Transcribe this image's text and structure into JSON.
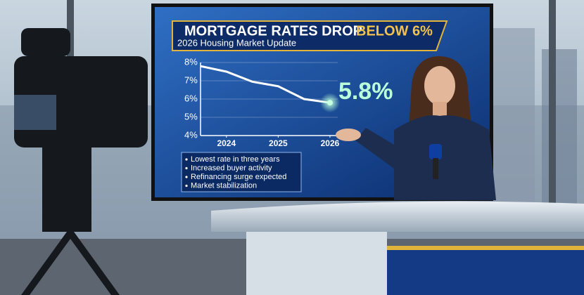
{
  "screen": {
    "title": "MORTGAGE RATES DROP",
    "title_highlight": "BELOW 6%",
    "subtitle": "2026 Housing Market Update",
    "bullets": [
      "Lowest rate in three years",
      "Increased buyer activity",
      "Refinancing surge expected",
      "Market stabilization"
    ]
  },
  "chart_data": {
    "type": "line",
    "x": [
      2023.5,
      2024,
      2024.5,
      2025,
      2025.5,
      2026
    ],
    "values": [
      7.8,
      7.5,
      6.95,
      6.7,
      6.0,
      5.8
    ],
    "color": "#ffffff",
    "xlim": [
      2023.5,
      2026.15
    ],
    "xticks": [
      2024,
      2025,
      2026
    ],
    "ylim": [
      4,
      8
    ],
    "yticks": [
      {
        "value": 8,
        "label": "8%"
      },
      {
        "value": 7,
        "label": "7%"
      },
      {
        "value": 6,
        "label": "6%"
      },
      {
        "value": 5,
        "label": "5%"
      },
      {
        "value": 4,
        "label": "4%"
      }
    ],
    "grid": true,
    "annotation": "5.8%"
  }
}
